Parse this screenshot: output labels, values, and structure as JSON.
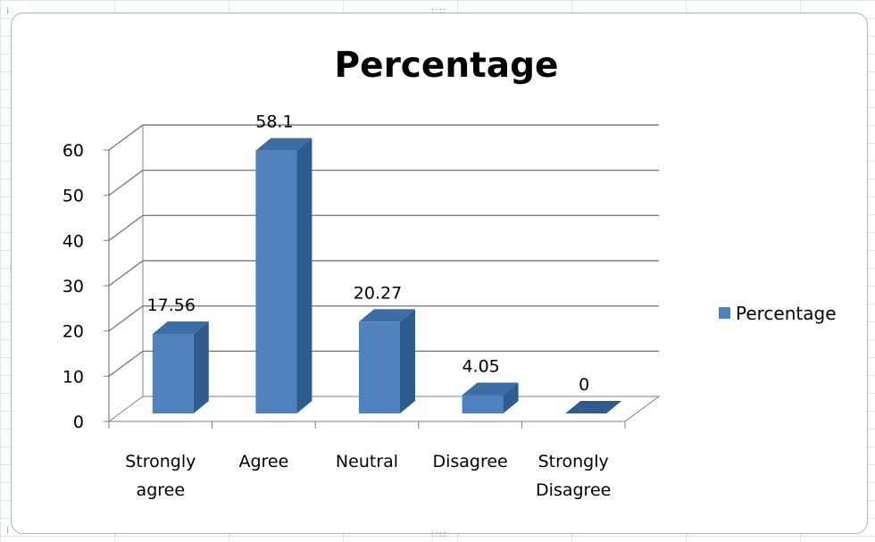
{
  "chart_data": {
    "type": "bar",
    "title": "Percentage",
    "categories": [
      "Strongly agree",
      "Agree",
      "Neutral",
      "Disagree",
      "Strongly Disagree"
    ],
    "category_lines": [
      [
        "Strongly",
        "agree"
      ],
      [
        "Agree"
      ],
      [
        "Neutral"
      ],
      [
        "Disagree"
      ],
      [
        "Strongly",
        "Disagree"
      ]
    ],
    "series": [
      {
        "name": "Percentage",
        "values": [
          17.56,
          58.1,
          20.27,
          4.05,
          0
        ],
        "labels": [
          "17.56",
          "58.1",
          "20.27",
          "4.05",
          "0"
        ]
      }
    ],
    "ylim": [
      0,
      60
    ],
    "yticks": [
      "0",
      "10",
      "20",
      "30",
      "40",
      "50",
      "60"
    ],
    "ytick_values": [
      0,
      10,
      20,
      30,
      40,
      50,
      60
    ],
    "grid": true,
    "legend_position": "right",
    "three_d": true,
    "colors": {
      "bar_front": "#4f81bd",
      "bar_side": "#2f5b8f",
      "bar_top": "#3d6da6",
      "grid": "#7f7f7f",
      "text": "#000000"
    }
  }
}
